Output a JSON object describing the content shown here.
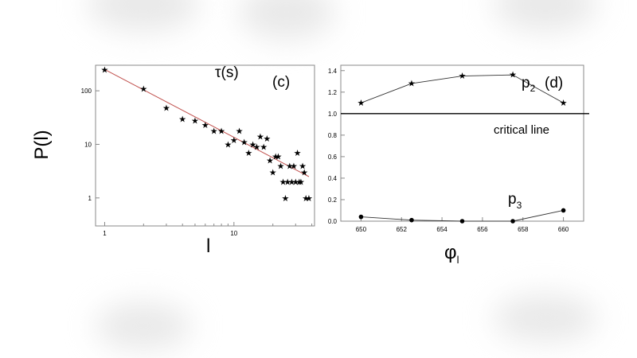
{
  "chart_data": [
    {
      "type": "scatter",
      "panel_label": "(c)",
      "title": "τ(s)",
      "xlabel": "l",
      "ylabel": "P(l)",
      "xscale": "log",
      "yscale": "log",
      "xlim": [
        0.85,
        42
      ],
      "ylim": [
        0.3,
        300
      ],
      "x_ticks": [
        1,
        10
      ],
      "y_ticks": [
        1,
        10,
        100
      ],
      "x_tick_labels": [
        "1",
        "10"
      ],
      "y_tick_labels": [
        "1",
        "10",
        "100"
      ],
      "points": [
        [
          1,
          250
        ],
        [
          2,
          110
        ],
        [
          3,
          48
        ],
        [
          4,
          30
        ],
        [
          5,
          28
        ],
        [
          6,
          23
        ],
        [
          7,
          18
        ],
        [
          8,
          18
        ],
        [
          9,
          10
        ],
        [
          10,
          12
        ],
        [
          11,
          18
        ],
        [
          12,
          11
        ],
        [
          13,
          7
        ],
        [
          14,
          10
        ],
        [
          15,
          9
        ],
        [
          16,
          14
        ],
        [
          17,
          9
        ],
        [
          18,
          13
        ],
        [
          19,
          5
        ],
        [
          20,
          3
        ],
        [
          21,
          6
        ],
        [
          22,
          6
        ],
        [
          23,
          4
        ],
        [
          24,
          2
        ],
        [
          25,
          1
        ],
        [
          26,
          2
        ],
        [
          27,
          4
        ],
        [
          28,
          2
        ],
        [
          29,
          4
        ],
        [
          30,
          2
        ],
        [
          31,
          7
        ],
        [
          32,
          2
        ],
        [
          33,
          2
        ],
        [
          34,
          4
        ],
        [
          35,
          3
        ],
        [
          36,
          1
        ],
        [
          38,
          1
        ]
      ],
      "fit_line": {
        "color": "#c0504d",
        "x": [
          1,
          38
        ],
        "y": [
          250,
          2.5
        ]
      },
      "marker": "★"
    },
    {
      "type": "line",
      "panel_label": "(d)",
      "xlabel": "φ",
      "xlabel_sub": "l",
      "xlim": [
        649,
        661
      ],
      "ylim": [
        0,
        1.45
      ],
      "x_ticks": [
        650,
        652,
        654,
        656,
        658,
        660
      ],
      "y_ticks": [
        0.0,
        0.2,
        0.4,
        0.6,
        0.8,
        1.0,
        1.2,
        1.4
      ],
      "y_tick_labels": [
        "0.0",
        "0.2",
        "0.4",
        "0.6",
        "0.8",
        "1.0",
        "1.2",
        "1.4"
      ],
      "series": [
        {
          "name": "p",
          "sub": "2",
          "marker": "star",
          "x": [
            650,
            652.5,
            655,
            657.5,
            660
          ],
          "y": [
            1.1,
            1.28,
            1.35,
            1.36,
            1.1
          ]
        },
        {
          "name": "p",
          "sub": "3",
          "marker": "circle",
          "x": [
            650,
            652.5,
            655,
            657.5,
            660
          ],
          "y": [
            0.04,
            0.01,
            0.0,
            0.0,
            0.1
          ]
        }
      ],
      "reference_line": {
        "y": 1.0,
        "label": "critical line"
      }
    }
  ]
}
